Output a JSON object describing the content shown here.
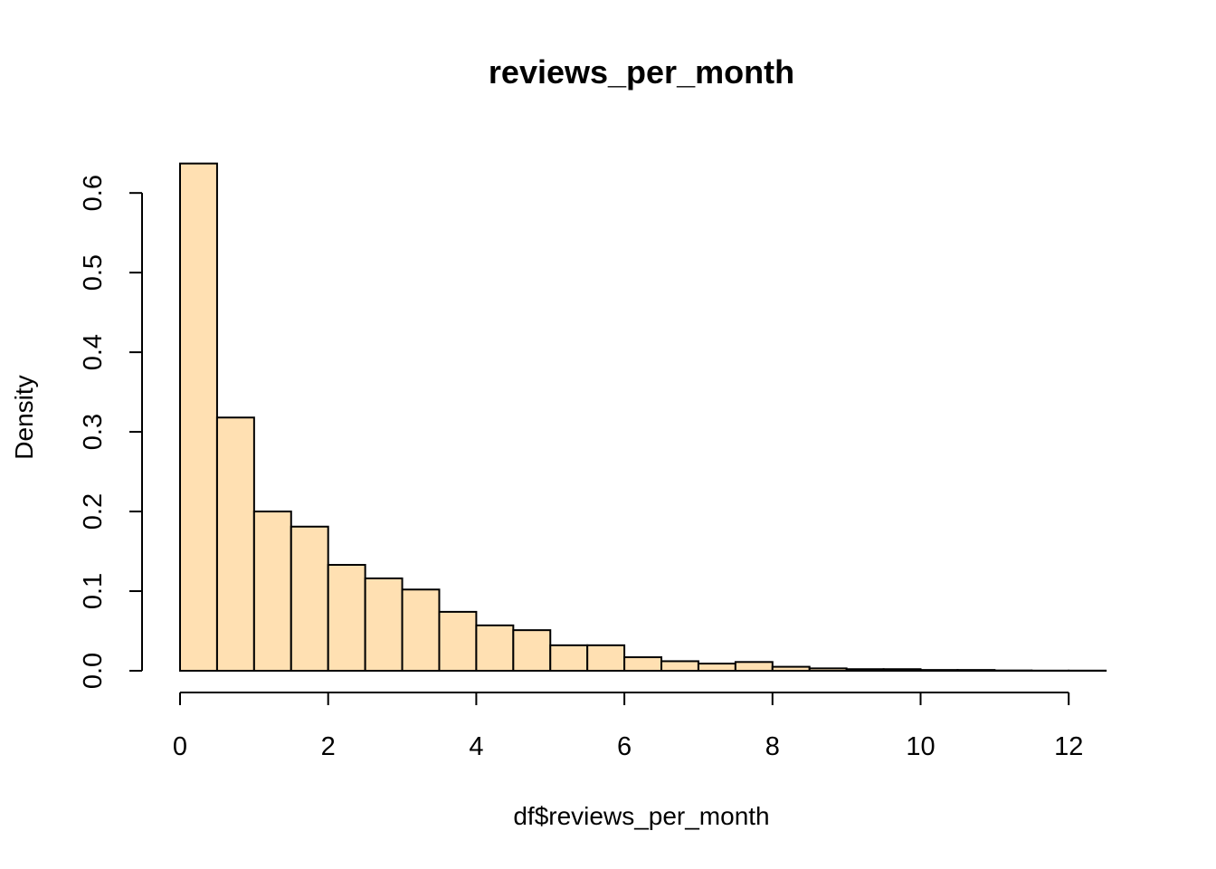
{
  "chart_data": {
    "type": "bar",
    "title": "reviews_per_month",
    "xlabel": "df$reviews_per_month",
    "ylabel": "Density",
    "bar_color": "#FFE0B2",
    "stroke_color": "#000000",
    "bin_edges": [
      0,
      0.5,
      1,
      1.5,
      2,
      2.5,
      3,
      3.5,
      4,
      4.5,
      5,
      5.5,
      6,
      6.5,
      7,
      7.5,
      8,
      8.5,
      9,
      9.5,
      10,
      10.5,
      11,
      11.5,
      12,
      12.5
    ],
    "values": [
      0.637,
      0.318,
      0.2,
      0.181,
      0.133,
      0.116,
      0.102,
      0.074,
      0.057,
      0.051,
      0.032,
      0.032,
      0.017,
      0.012,
      0.009,
      0.011,
      0.005,
      0.003,
      0.002,
      0.002,
      0.001,
      0.001,
      0.0004,
      0.0002,
      0.0002
    ],
    "xlim": [
      0,
      12.5
    ],
    "ylim": [
      0,
      0.64
    ],
    "x_ticks": [
      0,
      2,
      4,
      6,
      8,
      10,
      12
    ],
    "x_tick_labels": [
      "0",
      "2",
      "4",
      "6",
      "8",
      "10",
      "12"
    ],
    "y_ticks": [
      0,
      0.1,
      0.2,
      0.3,
      0.4,
      0.5,
      0.6
    ],
    "y_tick_labels": [
      "0.0",
      "0.1",
      "0.2",
      "0.3",
      "0.4",
      "0.5",
      "0.6"
    ],
    "grid": false,
    "legend": "none"
  }
}
